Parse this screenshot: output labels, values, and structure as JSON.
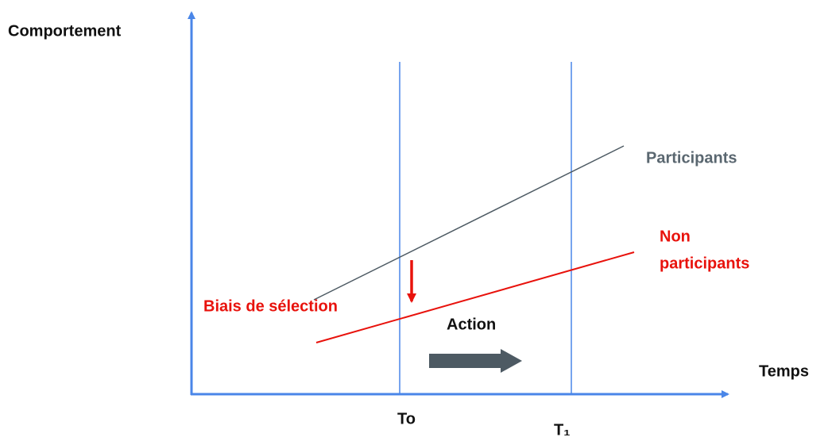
{
  "axes": {
    "y_label": "Comportement",
    "x_label": "Temps",
    "t0": "To",
    "t1": "T₁"
  },
  "lines": {
    "participants": "Participants",
    "non_participants": [
      "Non",
      "participants"
    ]
  },
  "annotations": {
    "bias": "Biais de sélection",
    "action": "Action"
  }
}
